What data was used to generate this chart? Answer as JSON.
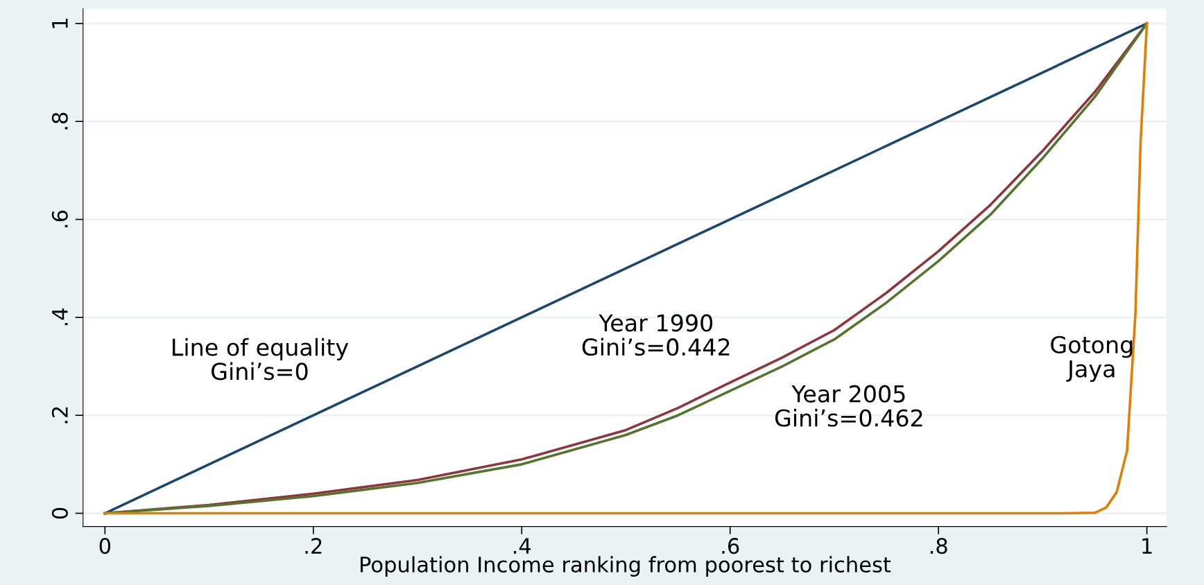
{
  "chart_data": {
    "type": "line",
    "xlabel": "Population Income ranking from poorest to richest",
    "xlim": [
      -0.021,
      1.019
    ],
    "ylim": [
      -0.027,
      1.03
    ],
    "xticks": [
      {
        "value": 0,
        "label": "0"
      },
      {
        "value": 0.2,
        "label": ".2"
      },
      {
        "value": 0.4,
        "label": ".4"
      },
      {
        "value": 0.6,
        "label": ".6"
      },
      {
        "value": 0.8,
        "label": ".8"
      },
      {
        "value": 1,
        "label": "1"
      }
    ],
    "yticks": [
      {
        "value": 0,
        "label": "0"
      },
      {
        "value": 0.2,
        "label": ".2"
      },
      {
        "value": 0.4,
        "label": ".4"
      },
      {
        "value": 0.6,
        "label": ".6"
      },
      {
        "value": 0.8,
        "label": ".8"
      },
      {
        "value": 1,
        "label": "1"
      }
    ],
    "grid": "y",
    "legend": false,
    "marker": "none",
    "line_style": "solid",
    "series": [
      {
        "color": "#1a476f",
        "x": [
          0,
          1
        ],
        "values": [
          0,
          1
        ]
      },
      {
        "color": "#90353b",
        "x": [
          0,
          0.1,
          0.2,
          0.3,
          0.4,
          0.5,
          0.55,
          0.6,
          0.65,
          0.7,
          0.75,
          0.8,
          0.85,
          0.9,
          0.95,
          1
        ],
        "values": [
          0,
          0.017,
          0.04,
          0.068,
          0.11,
          0.17,
          0.215,
          0.267,
          0.318,
          0.374,
          0.45,
          0.535,
          0.63,
          0.74,
          0.86,
          1
        ]
      },
      {
        "color": "#55752f",
        "x": [
          0,
          0.1,
          0.2,
          0.3,
          0.4,
          0.5,
          0.55,
          0.6,
          0.65,
          0.7,
          0.75,
          0.8,
          0.85,
          0.9,
          0.95,
          1
        ],
        "values": [
          0,
          0.015,
          0.035,
          0.062,
          0.1,
          0.16,
          0.2,
          0.25,
          0.3,
          0.355,
          0.43,
          0.515,
          0.61,
          0.725,
          0.85,
          1
        ]
      },
      {
        "color": "#e37e00",
        "x": [
          0,
          0.92,
          0.95,
          0.961,
          0.971,
          0.981,
          0.989,
          0.994,
          1
        ],
        "values": [
          0,
          0,
          0.001,
          0.012,
          0.043,
          0.128,
          0.408,
          0.76,
          1
        ]
      }
    ],
    "annotations": [
      "Line of equality\nGini’s=0",
      "Year 1990\nGini’s=0.442",
      "Year 2005\nGini’s=0.462",
      "Gotong\nJaya"
    ]
  }
}
